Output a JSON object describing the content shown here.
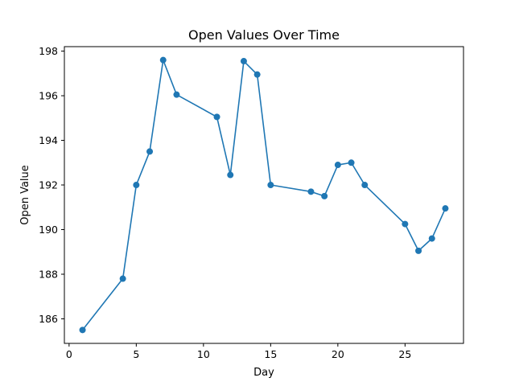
{
  "chart_data": {
    "type": "line",
    "title": "Open Values Over Time",
    "xlabel": "Day",
    "ylabel": "Open Value",
    "xlim": [
      -0.35,
      29.35
    ],
    "ylim": [
      184.9,
      198.2
    ],
    "xticks": [
      0,
      5,
      10,
      15,
      20,
      25
    ],
    "yticks": [
      186,
      188,
      190,
      192,
      194,
      196,
      198
    ],
    "grid": false,
    "color": "#1f77b4",
    "marker": "circle",
    "x": [
      1,
      4,
      5,
      6,
      7,
      8,
      11,
      12,
      13,
      14,
      15,
      18,
      19,
      20,
      21,
      22,
      25,
      26,
      27,
      28
    ],
    "y": [
      185.5,
      187.8,
      192.0,
      193.5,
      197.6,
      196.05,
      195.05,
      192.45,
      197.55,
      196.95,
      192.0,
      191.7,
      191.5,
      192.9,
      193.0,
      192.0,
      190.25,
      189.05,
      189.6,
      190.95
    ]
  }
}
